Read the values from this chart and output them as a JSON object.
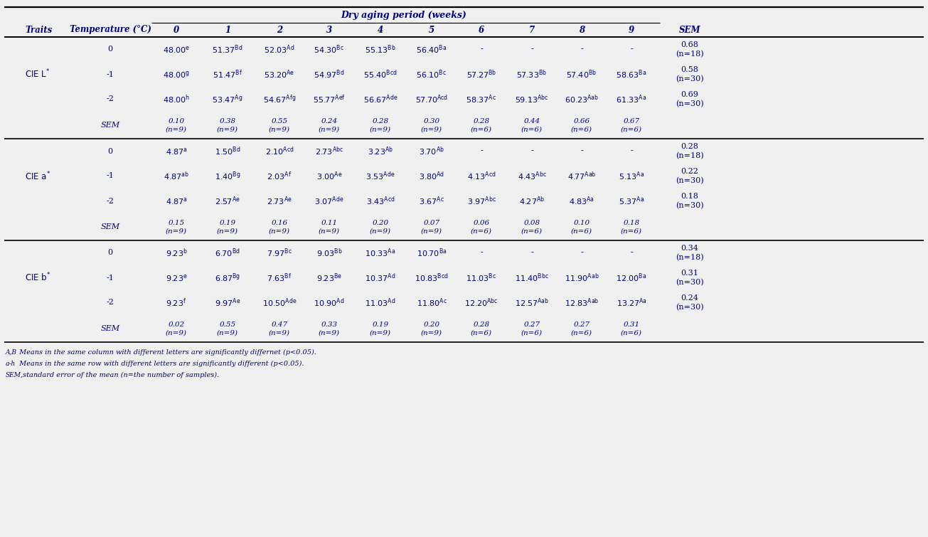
{
  "title": "Dry aging period (weeks)",
  "col_headers": [
    "0",
    "1",
    "2",
    "3",
    "4",
    "5",
    "6",
    "7",
    "8",
    "9"
  ],
  "background_color": "#f0f0f0",
  "text_color": "#000080",
  "line_color": "#000000",
  "font_size": 8.0,
  "header_font_size": 8.5,
  "sections": [
    {
      "trait": "CIE L*",
      "trait_super": "*",
      "rows": [
        {
          "temp": "0",
          "values": [
            "48.00^e",
            "51.37^{Bd}",
            "52.03^{Ad}",
            "54.30^{Bc}",
            "55.13^{Bb}",
            "56.40^{Ba}",
            "-",
            "-",
            "-",
            "-"
          ],
          "sem": "0.68\n(n=18)"
        },
        {
          "temp": "-1",
          "values": [
            "48.00^g",
            "51.47^{Bf}",
            "53.20^{Ae}",
            "54.97^{Bd}",
            "55.40^{Bcd}",
            "56.10^{Bc}",
            "57.27^{Bb}",
            "57.33^{Bb}",
            "57.40^{Bb}",
            "58.63^{Ba}"
          ],
          "sem": "0.58\n(n=30)"
        },
        {
          "temp": "-2",
          "values": [
            "48.00^h",
            "53.47^{Ag}",
            "54.67^{Afg}",
            "55.77^{Aef}",
            "56.67^{Ade}",
            "57.70^{Acd}",
            "58.37^{Ac}",
            "59.13^{Abc}",
            "60.23^{Aab}",
            "61.33^{Aa}"
          ],
          "sem": "0.69\n(n=30)"
        },
        {
          "temp": "SEM",
          "values": [
            "0.10\n(n=9)",
            "0.38\n(n=9)",
            "0.55\n(n=9)",
            "0.24\n(n=9)",
            "0.28\n(n=9)",
            "0.30\n(n=9)",
            "0.28\n(n=6)",
            "0.44\n(n=6)",
            "0.66\n(n=6)",
            "0.67\n(n=6)"
          ],
          "sem": ""
        }
      ]
    },
    {
      "trait": "CIE a*",
      "trait_super": "*",
      "rows": [
        {
          "temp": "0",
          "values": [
            "4.87^a",
            "1.50^{Bd}",
            "2.10^{Acd}",
            "2.73^{Abc}",
            "3.23^{Ab}",
            "3.70^{Ab}",
            "-",
            "-",
            "-",
            "-"
          ],
          "sem": "0.28\n(n=18)"
        },
        {
          "temp": "-1",
          "values": [
            "4.87^{ab}",
            "1.40^{Bg}",
            "2.03^{Af}",
            "3.00^{Ae}",
            "3.53^{Ade}",
            "3.80^{Ad}",
            "4.13^{Acd}",
            "4.43^{Abc}",
            "4.77^{Aab}",
            "5.13^{Aa}"
          ],
          "sem": "0.22\n(n=30)"
        },
        {
          "temp": "-2",
          "values": [
            "4.87^a",
            "2.57^{Ae}",
            "2.73^{Ae}",
            "3.07^{Ade}",
            "3.43^{Acd}",
            "3.67^{Ac}",
            "3.97^{Abc}",
            "4.27^{Ab}",
            "4.83^{Aa}",
            "5.37^{Aa}"
          ],
          "sem": "0.18\n(n=30)"
        },
        {
          "temp": "SEM",
          "values": [
            "0.15\n(n=9)",
            "0.19\n(n=9)",
            "0.16\n(n=9)",
            "0.11\n(n=9)",
            "0.20\n(n=9)",
            "0.07\n(n=9)",
            "0.06\n(n=6)",
            "0.08\n(n=6)",
            "0.10\n(n=6)",
            "0.18\n(n=6)"
          ],
          "sem": ""
        }
      ]
    },
    {
      "trait": "CIE b*",
      "trait_super": "*",
      "rows": [
        {
          "temp": "0",
          "values": [
            "9.23^b",
            "6.70^{Bd}",
            "7.97^{Bc}",
            "9.03^{Bb}",
            "10.33^{Aa}",
            "10.70^{Ba}",
            "-",
            "-",
            "-",
            "-"
          ],
          "sem": "0.34\n(n=18)"
        },
        {
          "temp": "-1",
          "values": [
            "9.23^e",
            "6.87^{Bg}",
            "7.63^{Bf}",
            "9.23^{Be}",
            "10.37^{Ad}",
            "10.83^{Bcd}",
            "11.03^{Bc}",
            "11.40^{Bbc}",
            "11.90^{Aab}",
            "12.00^{Ba}"
          ],
          "sem": "0.31\n(n=30)"
        },
        {
          "temp": "-2",
          "values": [
            "9.23^f",
            "9.97^{Ae}",
            "10.50^{Ade}",
            "10.90^{Ad}",
            "11.03^{Ad}",
            "11.80^{Ac}",
            "12.20^{Abc}",
            "12.57^{Aab}",
            "12.83^{Aab}",
            "13.27^{Aa}"
          ],
          "sem": "0.24\n(n=30)"
        },
        {
          "temp": "SEM",
          "values": [
            "0.02\n(n=9)",
            "0.55\n(n=9)",
            "0.47\n(n=9)",
            "0.33\n(n=9)",
            "0.19\n(n=9)",
            "0.20\n(n=9)",
            "0.28\n(n=6)",
            "0.27\n(n=6)",
            "0.27\n(n=6)",
            "0.31\n(n=6)"
          ],
          "sem": ""
        }
      ]
    }
  ],
  "footnotes": [
    [
      "A,B",
      " Means in the same column with different letters are significantly differnet (p<0.05)."
    ],
    [
      "a-h",
      " Means in the same row with different letters are significantly different (p<0.05)."
    ],
    [
      "SEM,",
      " standard error of the mean (n=the number of samples)."
    ]
  ]
}
